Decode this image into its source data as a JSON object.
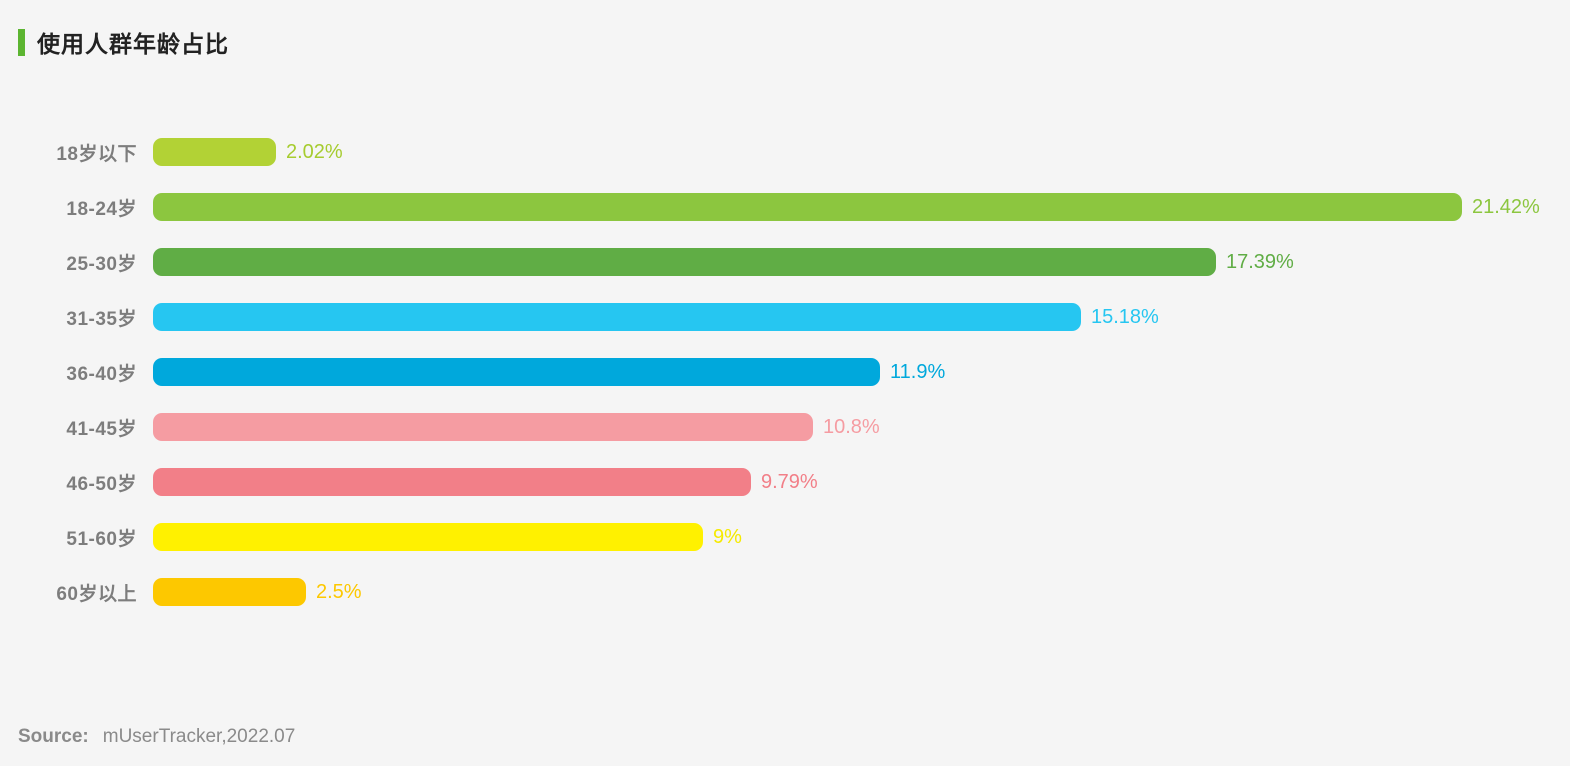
{
  "title": {
    "text": "使用人群年龄占比"
  },
  "source": {
    "label": "Source:",
    "text": "mUserTracker,2022.07"
  },
  "colors": {
    "background": "#f5f5f5",
    "title_accent": "#5cb531",
    "title_text": "#222222",
    "category_label": "#7d7d7d",
    "source_text": "#8a8a8a"
  },
  "chart_data": {
    "type": "bar",
    "orientation": "horizontal",
    "title": "使用人群年龄占比",
    "xlabel": "",
    "ylabel": "",
    "xlim": [
      0,
      21.42
    ],
    "grid": false,
    "legend": false,
    "categories": [
      "18岁以下",
      "18-24岁",
      "25-30岁",
      "31-35岁",
      "36-40岁",
      "41-45岁",
      "46-50岁",
      "51-60岁",
      "60岁以上"
    ],
    "values": [
      2.02,
      21.42,
      17.39,
      15.18,
      11.9,
      10.8,
      9.79,
      9,
      2.5
    ],
    "value_labels": [
      "2.02%",
      "21.42%",
      "17.39%",
      "15.18%",
      "11.9%",
      "10.8%",
      "9.79%",
      "9%",
      "2.5%"
    ],
    "bar_colors": [
      "#b2d235",
      "#8cc63f",
      "#60ad45",
      "#26c6f1",
      "#00a8dc",
      "#f59ca2",
      "#f27f88",
      "#fff100",
      "#fdc800"
    ],
    "value_label_colors": [
      "#a6cc2f",
      "#8cc63f",
      "#60ad45",
      "#26c6f1",
      "#00a8dc",
      "#f59ca2",
      "#f27f88",
      "#f5ea00",
      "#fdc800"
    ]
  }
}
